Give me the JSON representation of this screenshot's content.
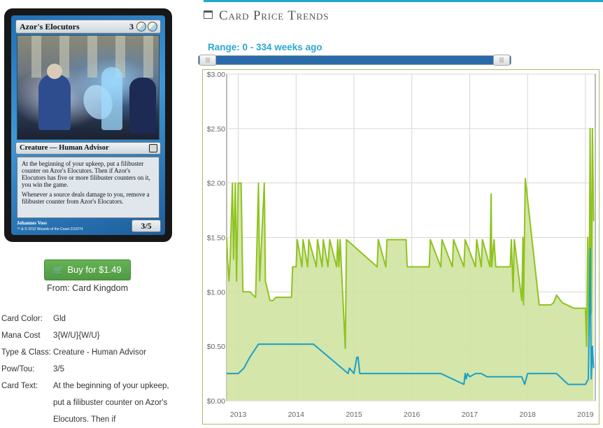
{
  "card": {
    "name": "Azor's Elocutors",
    "mana_generic": "3",
    "type_line": "Creature — Human Advisor",
    "rules_1": "At the beginning of your upkeep, put a filibuster counter on Azor's Elocutors. Then if Azor's Elocutors has five or more filibuster counters on it, you win the game.",
    "rules_2": "Whenever a source deals damage to you, remove a filibuster counter from Azor's Elocutors.",
    "pt": "3/5",
    "artist": "Johannes Voss",
    "copyright": "™ & © 2012 Wizards of the Coast 210/274"
  },
  "buy": {
    "label": "Buy for $1.49",
    "from": "From: Card Kingdom"
  },
  "details": {
    "color_label": "Card Color:",
    "color_value": "Gld",
    "mana_label": "Mana Cost",
    "mana_value": "3{W/U}{W/U}",
    "type_label": "Type & Class:",
    "type_value": "Creature - Human Advisor",
    "pt_label": "Pow/Tou:",
    "pt_value": "3/5",
    "text_label": "Card Text:",
    "text_value": "At the beginning of your upkeep, put a filibuster counter on Azor's Elocutors. Then if"
  },
  "trends": {
    "title": "Card Price Trends",
    "range_label": "Range: 0 - 334 weeks ago"
  },
  "chart_data": {
    "type": "area",
    "xlabel": "",
    "ylabel": "",
    "ylim": [
      0,
      3
    ],
    "xlim": [
      2012.8,
      2019.17
    ],
    "yticks": [
      "$0.00",
      "$0.50",
      "$1.00",
      "$1.50",
      "$2.00",
      "$2.50",
      "$3.00"
    ],
    "xticks": [
      "2013",
      "2014",
      "2015",
      "2016",
      "2017",
      "2018",
      "2019"
    ],
    "grid": true,
    "colors": {
      "green_line": "#8fc31f",
      "green_fill": "#cfe3a1",
      "blue_line": "#1aa0c8"
    },
    "series": [
      {
        "x": [
          2012.8,
          2012.82,
          2012.84,
          2012.86,
          2012.9,
          2012.92,
          2012.95,
          2012.97,
          2013.0,
          2013.03,
          2013.05,
          2013.08,
          2013.1,
          2013.2,
          2013.3,
          2013.35,
          2013.37,
          2013.45,
          2013.47,
          2013.55,
          2013.6,
          2013.65,
          2013.7,
          2013.8,
          2013.92,
          2013.94,
          2014.0,
          2014.02,
          2014.1,
          2014.12,
          2014.2,
          2014.22,
          2014.35,
          2014.37,
          2014.45,
          2014.47,
          2014.55,
          2014.58,
          2014.7,
          2014.72,
          2014.74,
          2014.76,
          2014.85,
          2014.87,
          2015.4,
          2015.42,
          2015.55,
          2015.57,
          2015.9,
          2015.92,
          2016.3,
          2016.32,
          2016.5,
          2016.52,
          2016.7,
          2016.72,
          2016.9,
          2016.92,
          2017.1,
          2017.12,
          2017.2,
          2017.22,
          2017.35,
          2017.37,
          2017.38,
          2017.42,
          2017.45,
          2017.6,
          2017.7,
          2017.72,
          2017.75,
          2017.77,
          2017.9,
          2017.92,
          2017.93,
          2017.96,
          2018.2,
          2018.4,
          2018.45,
          2018.5,
          2018.6,
          2018.8,
          2019.0,
          2019.02,
          2019.04,
          2019.06,
          2019.08,
          2019.1,
          2019.12,
          2019.14
        ],
        "values": [
          1.5,
          1.25,
          1.1,
          1.3,
          2.0,
          1.3,
          2.0,
          1.1,
          2.0,
          2.0,
          2.0,
          1.0,
          1.0,
          1.0,
          0.95,
          2.0,
          1.1,
          2.0,
          1.1,
          0.92,
          0.92,
          0.95,
          0.95,
          0.95,
          0.95,
          1.23,
          1.23,
          1.48,
          1.23,
          1.48,
          1.23,
          1.48,
          1.23,
          1.48,
          1.23,
          1.48,
          1.23,
          1.48,
          1.23,
          1.48,
          1.23,
          1.48,
          0.48,
          1.48,
          1.23,
          1.48,
          1.23,
          1.48,
          1.48,
          1.23,
          1.23,
          1.48,
          1.23,
          1.48,
          1.23,
          1.48,
          1.23,
          1.48,
          1.23,
          1.48,
          1.23,
          1.48,
          1.23,
          1.9,
          1.23,
          1.48,
          1.23,
          1.23,
          1.23,
          1.48,
          1.0,
          1.48,
          0.92,
          1.5,
          0.88,
          2.04,
          0.88,
          0.88,
          0.9,
          0.97,
          0.9,
          0.85,
          0.85,
          0.5,
          1.5,
          0.6,
          2.5,
          0.8,
          2.5,
          1.65
        ]
      },
      {
        "x": [
          2012.8,
          2012.95,
          2013.0,
          2013.1,
          2013.2,
          2013.3,
          2013.35,
          2013.5,
          2013.7,
          2014.0,
          2014.1,
          2014.2,
          2014.3,
          2014.9,
          2014.92,
          2015.0,
          2015.05,
          2015.07,
          2015.1,
          2015.12,
          2015.2,
          2015.3,
          2015.5,
          2016.0,
          2016.5,
          2016.9,
          2016.92,
          2016.94,
          2016.96,
          2017.0,
          2017.1,
          2017.2,
          2017.3,
          2017.5,
          2017.9,
          2017.95,
          2018.0,
          2018.2,
          2018.5,
          2018.7,
          2018.9,
          2019.0,
          2019.05,
          2019.08,
          2019.1,
          2019.12,
          2019.14
        ],
        "values": [
          0.25,
          0.25,
          0.25,
          0.3,
          0.4,
          0.48,
          0.52,
          0.52,
          0.52,
          0.52,
          0.52,
          0.52,
          0.52,
          0.25,
          0.3,
          0.25,
          0.4,
          0.4,
          0.25,
          0.25,
          0.25,
          0.25,
          0.25,
          0.25,
          0.25,
          0.15,
          0.25,
          0.2,
          0.25,
          0.22,
          0.25,
          0.25,
          0.22,
          0.22,
          0.22,
          0.15,
          0.25,
          0.25,
          0.25,
          0.15,
          0.15,
          0.15,
          0.2,
          1.4,
          0.2,
          0.5,
          0.3
        ]
      }
    ]
  }
}
